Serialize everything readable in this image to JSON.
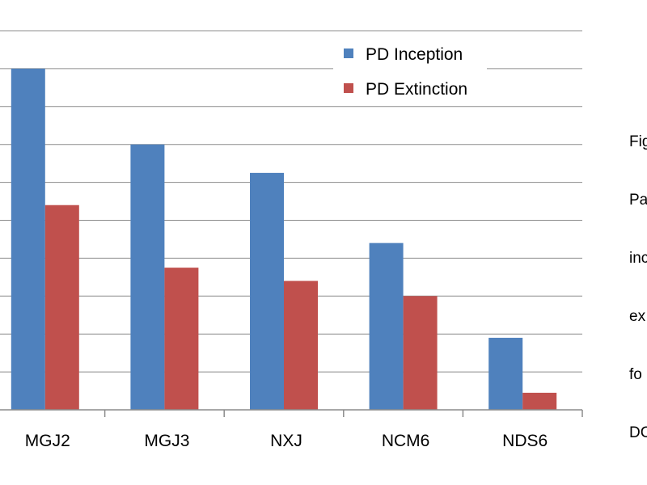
{
  "chart_data": {
    "type": "bar",
    "categories": [
      "MGJ2",
      "MGJ3",
      "NXJ",
      "NCM6",
      "NDS6"
    ],
    "series": [
      {
        "name": "PD Inception",
        "color": "#4f81bd",
        "values": [
          9.0,
          7.0,
          6.25,
          4.4,
          1.9
        ]
      },
      {
        "name": "PD Extinction",
        "color": "#c0504d",
        "values": [
          5.4,
          3.75,
          3.4,
          3.0,
          0.45
        ]
      }
    ],
    "ylim": [
      0,
      10
    ],
    "gridlines": true,
    "legend_position": "top-right",
    "title": "",
    "xlabel": "",
    "ylabel": ""
  },
  "caption": {
    "lines": [
      "Fig",
      "Pa",
      "inc",
      "ex",
      "fo",
      "DC"
    ]
  }
}
